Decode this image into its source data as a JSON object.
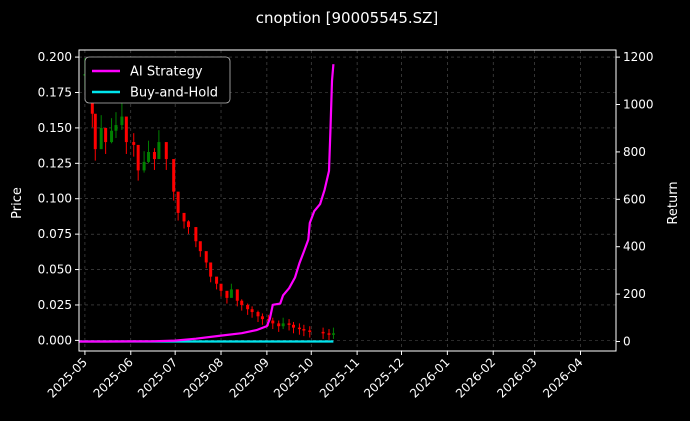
{
  "chart_data": {
    "type": "line",
    "title": "cnoption [90005545.SZ]",
    "xlabel": "",
    "ylabel_left": "Price",
    "ylabel_right": "Return",
    "grid": true,
    "legend_position": "top-left",
    "x_range": [
      "2025-04-27",
      "2026-04-25"
    ],
    "x_ticks": [
      "2025-05",
      "2025-06",
      "2025-07",
      "2025-08",
      "2025-09",
      "2025-10",
      "2025-11",
      "2025-12",
      "2026-01",
      "2026-02",
      "2026-03",
      "2026-04"
    ],
    "ylim_left": [
      -0.0075,
      0.205
    ],
    "y_ticks_left": [
      "0.000",
      "0.025",
      "0.050",
      "0.075",
      "0.100",
      "0.125",
      "0.150",
      "0.175",
      "0.200"
    ],
    "ylim_right": [
      -40,
      1230
    ],
    "y_ticks_right": [
      "0",
      "200",
      "400",
      "600",
      "800",
      "1000",
      "1200"
    ],
    "price_series": {
      "kind": "candlestick",
      "up_color": "#008000",
      "down_color": "#ff0000",
      "points": [
        [
          "2025-05-01",
          0.188
        ],
        [
          "2025-05-06",
          0.16
        ],
        [
          "2025-05-08",
          0.135
        ],
        [
          "2025-05-12",
          0.15
        ],
        [
          "2025-05-15",
          0.14
        ],
        [
          "2025-05-19",
          0.148
        ],
        [
          "2025-05-22",
          0.152
        ],
        [
          "2025-05-26",
          0.158
        ],
        [
          "2025-05-29",
          0.14
        ],
        [
          "2025-06-03",
          0.138
        ],
        [
          "2025-06-06",
          0.12
        ],
        [
          "2025-06-10",
          0.126
        ],
        [
          "2025-06-13",
          0.133
        ],
        [
          "2025-06-17",
          0.128
        ],
        [
          "2025-06-20",
          0.14
        ],
        [
          "2025-06-25",
          0.128
        ],
        [
          "2025-06-30",
          0.105
        ],
        [
          "2025-07-03",
          0.09
        ],
        [
          "2025-07-07",
          0.084
        ],
        [
          "2025-07-10",
          0.08
        ],
        [
          "2025-07-15",
          0.07
        ],
        [
          "2025-07-18",
          0.063
        ],
        [
          "2025-07-22",
          0.055
        ],
        [
          "2025-07-25",
          0.045
        ],
        [
          "2025-07-29",
          0.04
        ],
        [
          "2025-08-01",
          0.035
        ],
        [
          "2025-08-05",
          0.03
        ],
        [
          "2025-08-08",
          0.036
        ],
        [
          "2025-08-12",
          0.028
        ],
        [
          "2025-08-15",
          0.025
        ],
        [
          "2025-08-19",
          0.022
        ],
        [
          "2025-08-22",
          0.02
        ],
        [
          "2025-08-26",
          0.017
        ],
        [
          "2025-08-29",
          0.015
        ],
        [
          "2025-09-02",
          0.014
        ],
        [
          "2025-09-05",
          0.012
        ],
        [
          "2025-09-09",
          0.01
        ],
        [
          "2025-09-12",
          0.012
        ],
        [
          "2025-09-16",
          0.011
        ],
        [
          "2025-09-19",
          0.009
        ],
        [
          "2025-09-23",
          0.008
        ],
        [
          "2025-09-26",
          0.007
        ],
        [
          "2025-09-30",
          0.006
        ],
        [
          "2025-10-09",
          0.005
        ],
        [
          "2025-10-13",
          0.004
        ],
        [
          "2025-10-16",
          0.005
        ]
      ]
    },
    "series": [
      {
        "name": "AI Strategy",
        "color": "#ff00ff",
        "axis": "right",
        "points": [
          [
            "2025-04-27",
            0
          ],
          [
            "2025-05-15",
            0
          ],
          [
            "2025-06-15",
            1
          ],
          [
            "2025-07-01",
            4
          ],
          [
            "2025-07-15",
            12
          ],
          [
            "2025-08-01",
            25
          ],
          [
            "2025-08-15",
            35
          ],
          [
            "2025-08-25",
            48
          ],
          [
            "2025-09-01",
            65
          ],
          [
            "2025-09-03",
            95
          ],
          [
            "2025-09-05",
            155
          ],
          [
            "2025-09-10",
            160
          ],
          [
            "2025-09-12",
            195
          ],
          [
            "2025-09-16",
            225
          ],
          [
            "2025-09-20",
            270
          ],
          [
            "2025-09-23",
            330
          ],
          [
            "2025-09-26",
            380
          ],
          [
            "2025-09-29",
            430
          ],
          [
            "2025-09-30",
            500
          ],
          [
            "2025-10-03",
            550
          ],
          [
            "2025-10-07",
            580
          ],
          [
            "2025-10-10",
            640
          ],
          [
            "2025-10-13",
            720
          ],
          [
            "2025-10-14",
            900
          ],
          [
            "2025-10-15",
            1100
          ],
          [
            "2025-10-16",
            1170
          ]
        ]
      },
      {
        "name": "Buy-and-Hold",
        "color": "#00e5ee",
        "axis": "right",
        "points": [
          [
            "2025-04-27",
            0
          ],
          [
            "2025-10-16",
            0
          ]
        ]
      }
    ]
  }
}
